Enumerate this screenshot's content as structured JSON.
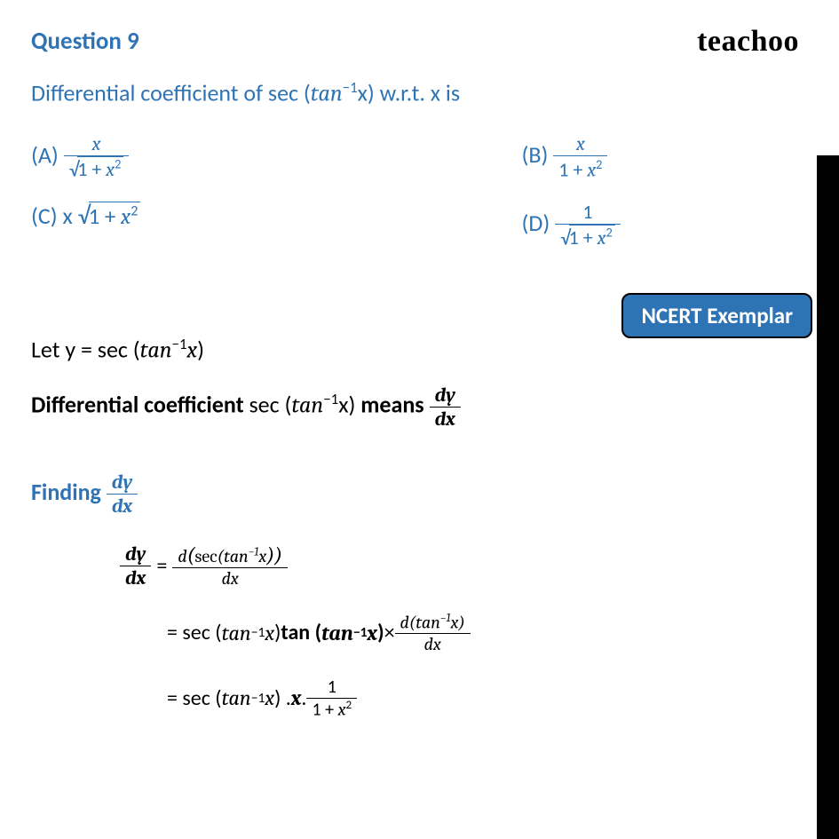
{
  "header": {
    "question_label": "Question 9",
    "brand": "teachoo"
  },
  "question": {
    "prompt_pre": "Differential coefficient of sec (",
    "prompt_fn": "tan",
    "prompt_exp": "−1",
    "prompt_var": "x",
    "prompt_post": ") w.r.t. x is"
  },
  "options": {
    "A": {
      "label": "(A) ",
      "num": "x",
      "den_pre": "1 + ",
      "den_var": "x",
      "den_exp": "2",
      "has_sqrt_den": true
    },
    "B": {
      "label": "(B) ",
      "num": "x",
      "den_pre": "1 + ",
      "den_var": "x",
      "den_exp": "2",
      "has_sqrt_den": false
    },
    "C": {
      "label": "(C) x ",
      "body_pre": "1 + ",
      "body_var": "x",
      "body_exp": "2"
    },
    "D": {
      "label": "(D) ",
      "num": "1",
      "den_pre": "1 + ",
      "den_var": "x",
      "den_exp": "2",
      "has_sqrt_den": true
    }
  },
  "badge": "NCERT Exemplar",
  "solution": {
    "line1_pre": "Let y = sec (",
    "line1_fn": "tan",
    "line1_exp": "−1",
    "line1_var": "x",
    "line1_post": ")",
    "line2_pre": "Differential coefficient",
    "line2_mid": "  sec (",
    "line2_fn": "tan",
    "line2_exp": "−1",
    "line2_var": "x",
    "line2_mid2": ")  ",
    "line2_means": "means ",
    "dy": "dy",
    "dx": "dx"
  },
  "finding": {
    "label": "Finding ",
    "dy": "dy",
    "dx": "dx"
  },
  "work": {
    "step1": {
      "lhs_num": "dy",
      "lhs_den": "dx",
      "eq": " = ",
      "rhs_num_pre": "d",
      "rhs_num_open": "(",
      "rhs_num_sec": "sec",
      "rhs_num_open2": "(",
      "rhs_num_fn": "tan",
      "rhs_num_exp": "−1",
      "rhs_num_var": "x",
      "rhs_num_close": "))",
      "rhs_den": "dx"
    },
    "step2": {
      "eq": "= sec (",
      "fn1": "tan",
      "exp1": "−1",
      "var1": "x",
      "mid": ") ",
      "tan_b": "tan (",
      "fn2": "tan",
      "exp2": "−1",
      "var2": "x",
      "close2": ")",
      "times": "  ×  ",
      "rhs_num_pre": "d(",
      "rhs_num_fn": "tan",
      "rhs_num_exp": "−1",
      "rhs_num_var": "x",
      "rhs_num_close": ")",
      "rhs_den": "dx"
    },
    "step3": {
      "eq": "= sec (",
      "fn": "tan",
      "exp": "−1",
      "var": "x",
      "mid": ") . ",
      "x_bold": "x",
      "dot": " . ",
      "num": "1",
      "den_pre": "1 + ",
      "den_var": "x",
      "den_exp": "2"
    }
  },
  "colors": {
    "accent": "#2e74b5",
    "text": "#000000",
    "bg": "#ffffff"
  }
}
